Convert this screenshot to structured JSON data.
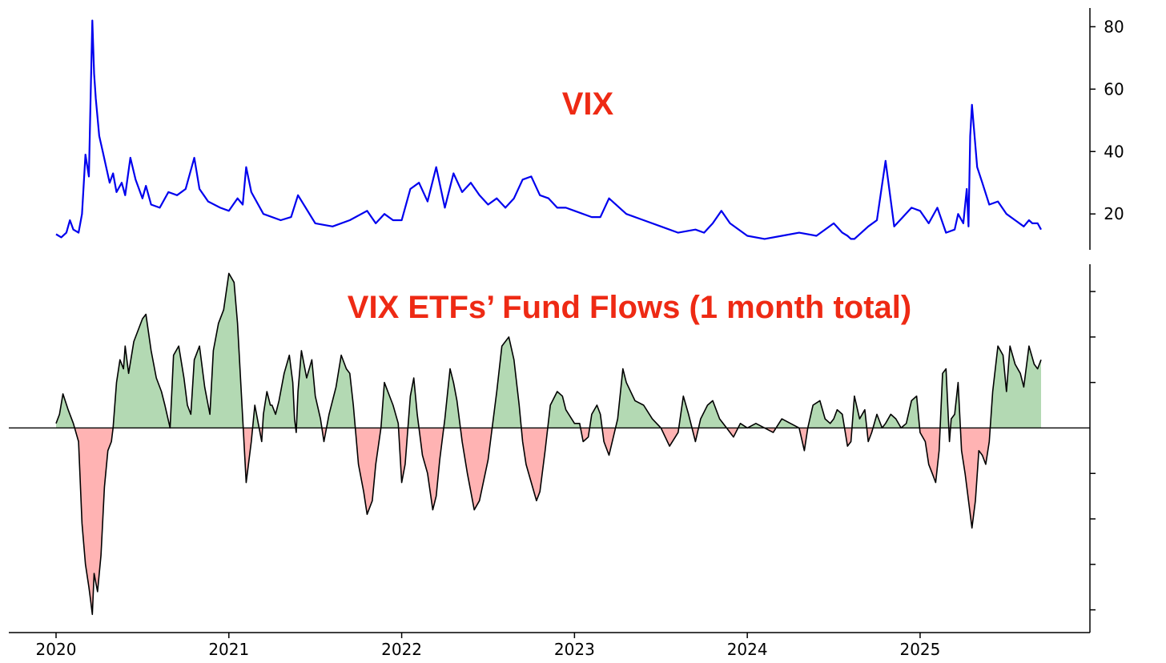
{
  "colors": {
    "vix_line": "#0000ee",
    "flow_line": "#000000",
    "flow_positive": "#b3d9b3",
    "flow_negative": "#ffb3b3",
    "title": "#ee2a14"
  },
  "chart_data": [
    {
      "type": "line",
      "title": "VIX",
      "xlabel": "",
      "ylabel": "",
      "x_range": [
        2020.0,
        2025.7
      ],
      "ylim": [
        8.5,
        86
      ],
      "y_ticks": [
        "20",
        "40",
        "60",
        "80"
      ],
      "y_axis_side": "right",
      "grid": false,
      "series": [
        {
          "x": [
            2020.0,
            2020.03,
            2020.06,
            2020.08,
            2020.1,
            2020.13,
            2020.15,
            2020.17,
            2020.19,
            2020.2,
            2020.21,
            2020.22,
            2020.23,
            2020.25,
            2020.27,
            2020.29,
            2020.31,
            2020.33,
            2020.35,
            2020.38,
            2020.4,
            2020.43,
            2020.46,
            2020.5,
            2020.52,
            2020.55,
            2020.6,
            2020.65,
            2020.7,
            2020.75,
            2020.8,
            2020.83,
            2020.88,
            2020.95,
            2021.0,
            2021.05,
            2021.08,
            2021.1,
            2021.13,
            2021.2,
            2021.3,
            2021.36,
            2021.4,
            2021.5,
            2021.6,
            2021.7,
            2021.8,
            2021.85,
            2021.9,
            2021.95,
            2022.0,
            2022.05,
            2022.1,
            2022.15,
            2022.2,
            2022.25,
            2022.3,
            2022.35,
            2022.4,
            2022.45,
            2022.5,
            2022.55,
            2022.6,
            2022.65,
            2022.7,
            2022.75,
            2022.8,
            2022.85,
            2022.9,
            2022.95,
            2023.0,
            2023.1,
            2023.15,
            2023.2,
            2023.3,
            2023.4,
            2023.5,
            2023.6,
            2023.7,
            2023.75,
            2023.8,
            2023.85,
            2023.9,
            2024.0,
            2024.1,
            2024.2,
            2024.3,
            2024.4,
            2024.5,
            2024.55,
            2024.58,
            2024.6,
            2024.62,
            2024.7,
            2024.75,
            2024.8,
            2024.85,
            2024.9,
            2024.95,
            2025.0,
            2025.05,
            2025.1,
            2025.15,
            2025.2,
            2025.22,
            2025.25,
            2025.27,
            2025.28,
            2025.29,
            2025.3,
            2025.33,
            2025.36,
            2025.4,
            2025.45,
            2025.5,
            2025.55,
            2025.6,
            2025.63,
            2025.65,
            2025.68,
            2025.7
          ],
          "y": [
            13.5,
            12.5,
            14,
            18,
            15,
            14,
            20,
            39,
            32,
            58,
            82,
            65,
            57,
            45,
            40,
            35,
            30,
            33,
            27,
            30,
            26,
            38,
            31,
            25,
            29,
            23,
            22,
            27,
            26,
            28,
            38,
            28,
            24,
            22,
            21,
            25,
            23,
            35,
            27,
            20,
            18,
            19,
            26,
            17,
            16,
            18,
            21,
            17,
            20,
            18,
            18,
            28,
            30,
            24,
            35,
            22,
            33,
            27,
            30,
            26,
            23,
            25,
            22,
            25,
            31,
            32,
            26,
            25,
            22,
            22,
            21,
            19,
            19,
            25,
            20,
            18,
            16,
            14,
            15,
            14,
            17,
            21,
            17,
            13,
            12,
            13,
            14,
            13,
            17,
            14,
            13,
            12,
            12,
            16,
            18,
            37,
            16,
            19,
            22,
            21,
            17,
            22,
            14,
            15,
            20,
            17,
            28,
            16,
            45,
            55,
            35,
            30,
            23,
            24,
            20,
            18,
            16,
            18,
            17,
            17,
            15
          ]
        }
      ]
    },
    {
      "type": "area",
      "title": "VIX ETFs’ Fund Flows (1 month total)",
      "xlabel": "",
      "ylabel": "",
      "x_range": [
        2020.0,
        2025.7
      ],
      "ylim": [
        -4.5,
        3.6
      ],
      "x_ticks": [
        "2020",
        "2021",
        "2022",
        "2023",
        "2024",
        "2025"
      ],
      "y_axis_side": "right",
      "y_tick_values": [
        -4,
        -3,
        -2,
        -1,
        1,
        2,
        3
      ],
      "zero_line": true,
      "grid": false,
      "series": [
        {
          "x": [
            2020.0,
            2020.02,
            2020.04,
            2020.07,
            2020.1,
            2020.13,
            2020.15,
            2020.17,
            2020.19,
            2020.2,
            2020.21,
            2020.22,
            2020.24,
            2020.26,
            2020.28,
            2020.3,
            2020.32,
            2020.33,
            2020.35,
            2020.37,
            2020.39,
            2020.4,
            2020.42,
            2020.45,
            2020.5,
            2020.52,
            2020.55,
            2020.58,
            2020.61,
            2020.63,
            2020.66,
            2020.68,
            2020.71,
            2020.74,
            2020.76,
            2020.78,
            2020.8,
            2020.83,
            2020.86,
            2020.89,
            2020.91,
            2020.94,
            2020.97,
            2021.0,
            2021.03,
            2021.05,
            2021.08,
            2021.1,
            2021.13,
            2021.15,
            2021.17,
            2021.19,
            2021.2,
            2021.22,
            2021.24,
            2021.25,
            2021.27,
            2021.29,
            2021.32,
            2021.35,
            2021.37,
            2021.38,
            2021.39,
            2021.4,
            2021.42,
            2021.45,
            2021.48,
            2021.5,
            2021.53,
            2021.55,
            2021.58,
            2021.62,
            2021.65,
            2021.68,
            2021.7,
            2021.72,
            2021.75,
            2021.78,
            2021.8,
            2021.83,
            2021.85,
            2021.88,
            2021.9,
            2021.92,
            2021.95,
            2021.98,
            2022.0,
            2022.02,
            2022.05,
            2022.07,
            2022.09,
            2022.12,
            2022.15,
            2022.18,
            2022.2,
            2022.22,
            2022.25,
            2022.28,
            2022.3,
            2022.32,
            2022.35,
            2022.38,
            2022.42,
            2022.45,
            2022.5,
            2022.55,
            2022.58,
            2022.62,
            2022.65,
            2022.68,
            2022.7,
            2022.72,
            2022.75,
            2022.78,
            2022.8,
            2022.83,
            2022.86,
            2022.9,
            2022.93,
            2022.95,
            2023.0,
            2023.03,
            2023.05,
            2023.08,
            2023.1,
            2023.13,
            2023.15,
            2023.17,
            2023.2,
            2023.25,
            2023.28,
            2023.3,
            2023.35,
            2023.4,
            2023.45,
            2023.5,
            2023.55,
            2023.6,
            2023.63,
            2023.66,
            2023.7,
            2023.73,
            2023.77,
            2023.8,
            2023.84,
            2023.88,
            2023.92,
            2023.96,
            2024.0,
            2024.05,
            2024.1,
            2024.15,
            2024.2,
            2024.25,
            2024.3,
            2024.33,
            2024.35,
            2024.38,
            2024.42,
            2024.45,
            2024.48,
            2024.5,
            2024.52,
            2024.55,
            2024.58,
            2024.6,
            2024.62,
            2024.65,
            2024.68,
            2024.7,
            2024.72,
            2024.75,
            2024.78,
            2024.8,
            2024.83,
            2024.86,
            2024.89,
            2024.92,
            2024.95,
            2024.98,
            2025.0,
            2025.03,
            2025.05,
            2025.07,
            2025.09,
            2025.11,
            2025.13,
            2025.15,
            2025.17,
            2025.18,
            2025.2,
            2025.22,
            2025.24,
            2025.26,
            2025.28,
            2025.3,
            2025.32,
            2025.34,
            2025.36,
            2025.38,
            2025.4,
            2025.42,
            2025.45,
            2025.48,
            2025.5,
            2025.52,
            2025.55,
            2025.58,
            2025.6,
            2025.63,
            2025.66,
            2025.68,
            2025.7
          ],
          "y": [
            0.1,
            0.3,
            0.75,
            0.4,
            0.1,
            -0.3,
            -2.1,
            -3.0,
            -3.5,
            -3.8,
            -4.1,
            -3.2,
            -3.6,
            -2.8,
            -1.3,
            -0.5,
            -0.3,
            0.0,
            1.0,
            1.5,
            1.3,
            1.8,
            1.2,
            1.9,
            2.4,
            2.5,
            1.7,
            1.1,
            0.8,
            0.5,
            0.0,
            1.6,
            1.8,
            1.1,
            0.5,
            0.3,
            1.5,
            1.8,
            0.9,
            0.3,
            1.7,
            2.3,
            2.6,
            3.4,
            3.2,
            2.3,
            0.2,
            -1.2,
            -0.3,
            0.5,
            0.1,
            -0.3,
            0.3,
            0.8,
            0.5,
            0.5,
            0.3,
            0.6,
            1.2,
            1.6,
            1.0,
            0.2,
            -0.1,
            0.8,
            1.7,
            1.1,
            1.5,
            0.7,
            0.2,
            -0.3,
            0.3,
            0.9,
            1.6,
            1.3,
            1.2,
            0.5,
            -0.8,
            -1.4,
            -1.9,
            -1.6,
            -0.8,
            0.0,
            1.0,
            0.8,
            0.5,
            0.1,
            -1.2,
            -0.8,
            0.7,
            1.1,
            0.3,
            -0.6,
            -1.0,
            -1.8,
            -1.5,
            -0.7,
            0.2,
            1.3,
            1.0,
            0.6,
            -0.3,
            -1.0,
            -1.8,
            -1.6,
            -0.7,
            0.8,
            1.8,
            2.0,
            1.5,
            0.5,
            -0.3,
            -0.8,
            -1.2,
            -1.6,
            -1.4,
            -0.5,
            0.5,
            0.8,
            0.7,
            0.4,
            0.1,
            0.1,
            -0.3,
            -0.2,
            0.3,
            0.5,
            0.3,
            -0.3,
            -0.6,
            0.2,
            1.3,
            1.0,
            0.6,
            0.5,
            0.2,
            0.0,
            -0.4,
            -0.1,
            0.7,
            0.3,
            -0.3,
            0.2,
            0.5,
            0.6,
            0.2,
            0.0,
            -0.2,
            0.1,
            0.0,
            0.1,
            0.0,
            -0.1,
            0.2,
            0.1,
            0.0,
            -0.5,
            0.0,
            0.5,
            0.6,
            0.2,
            0.1,
            0.2,
            0.4,
            0.3,
            -0.4,
            -0.3,
            0.7,
            0.2,
            0.4,
            -0.3,
            -0.1,
            0.3,
            0.0,
            0.1,
            0.3,
            0.2,
            0.0,
            0.1,
            0.6,
            0.7,
            -0.1,
            -0.3,
            -0.8,
            -1.0,
            -1.2,
            -0.5,
            1.2,
            1.3,
            -0.3,
            0.2,
            0.3,
            1.0,
            -0.5,
            -1.0,
            -1.6,
            -2.2,
            -1.6,
            -0.5,
            -0.6,
            -0.8,
            -0.3,
            0.8,
            1.8,
            1.6,
            0.8,
            1.8,
            1.4,
            1.2,
            0.9,
            1.8,
            1.4,
            1.3,
            1.5
          ]
        }
      ]
    }
  ]
}
